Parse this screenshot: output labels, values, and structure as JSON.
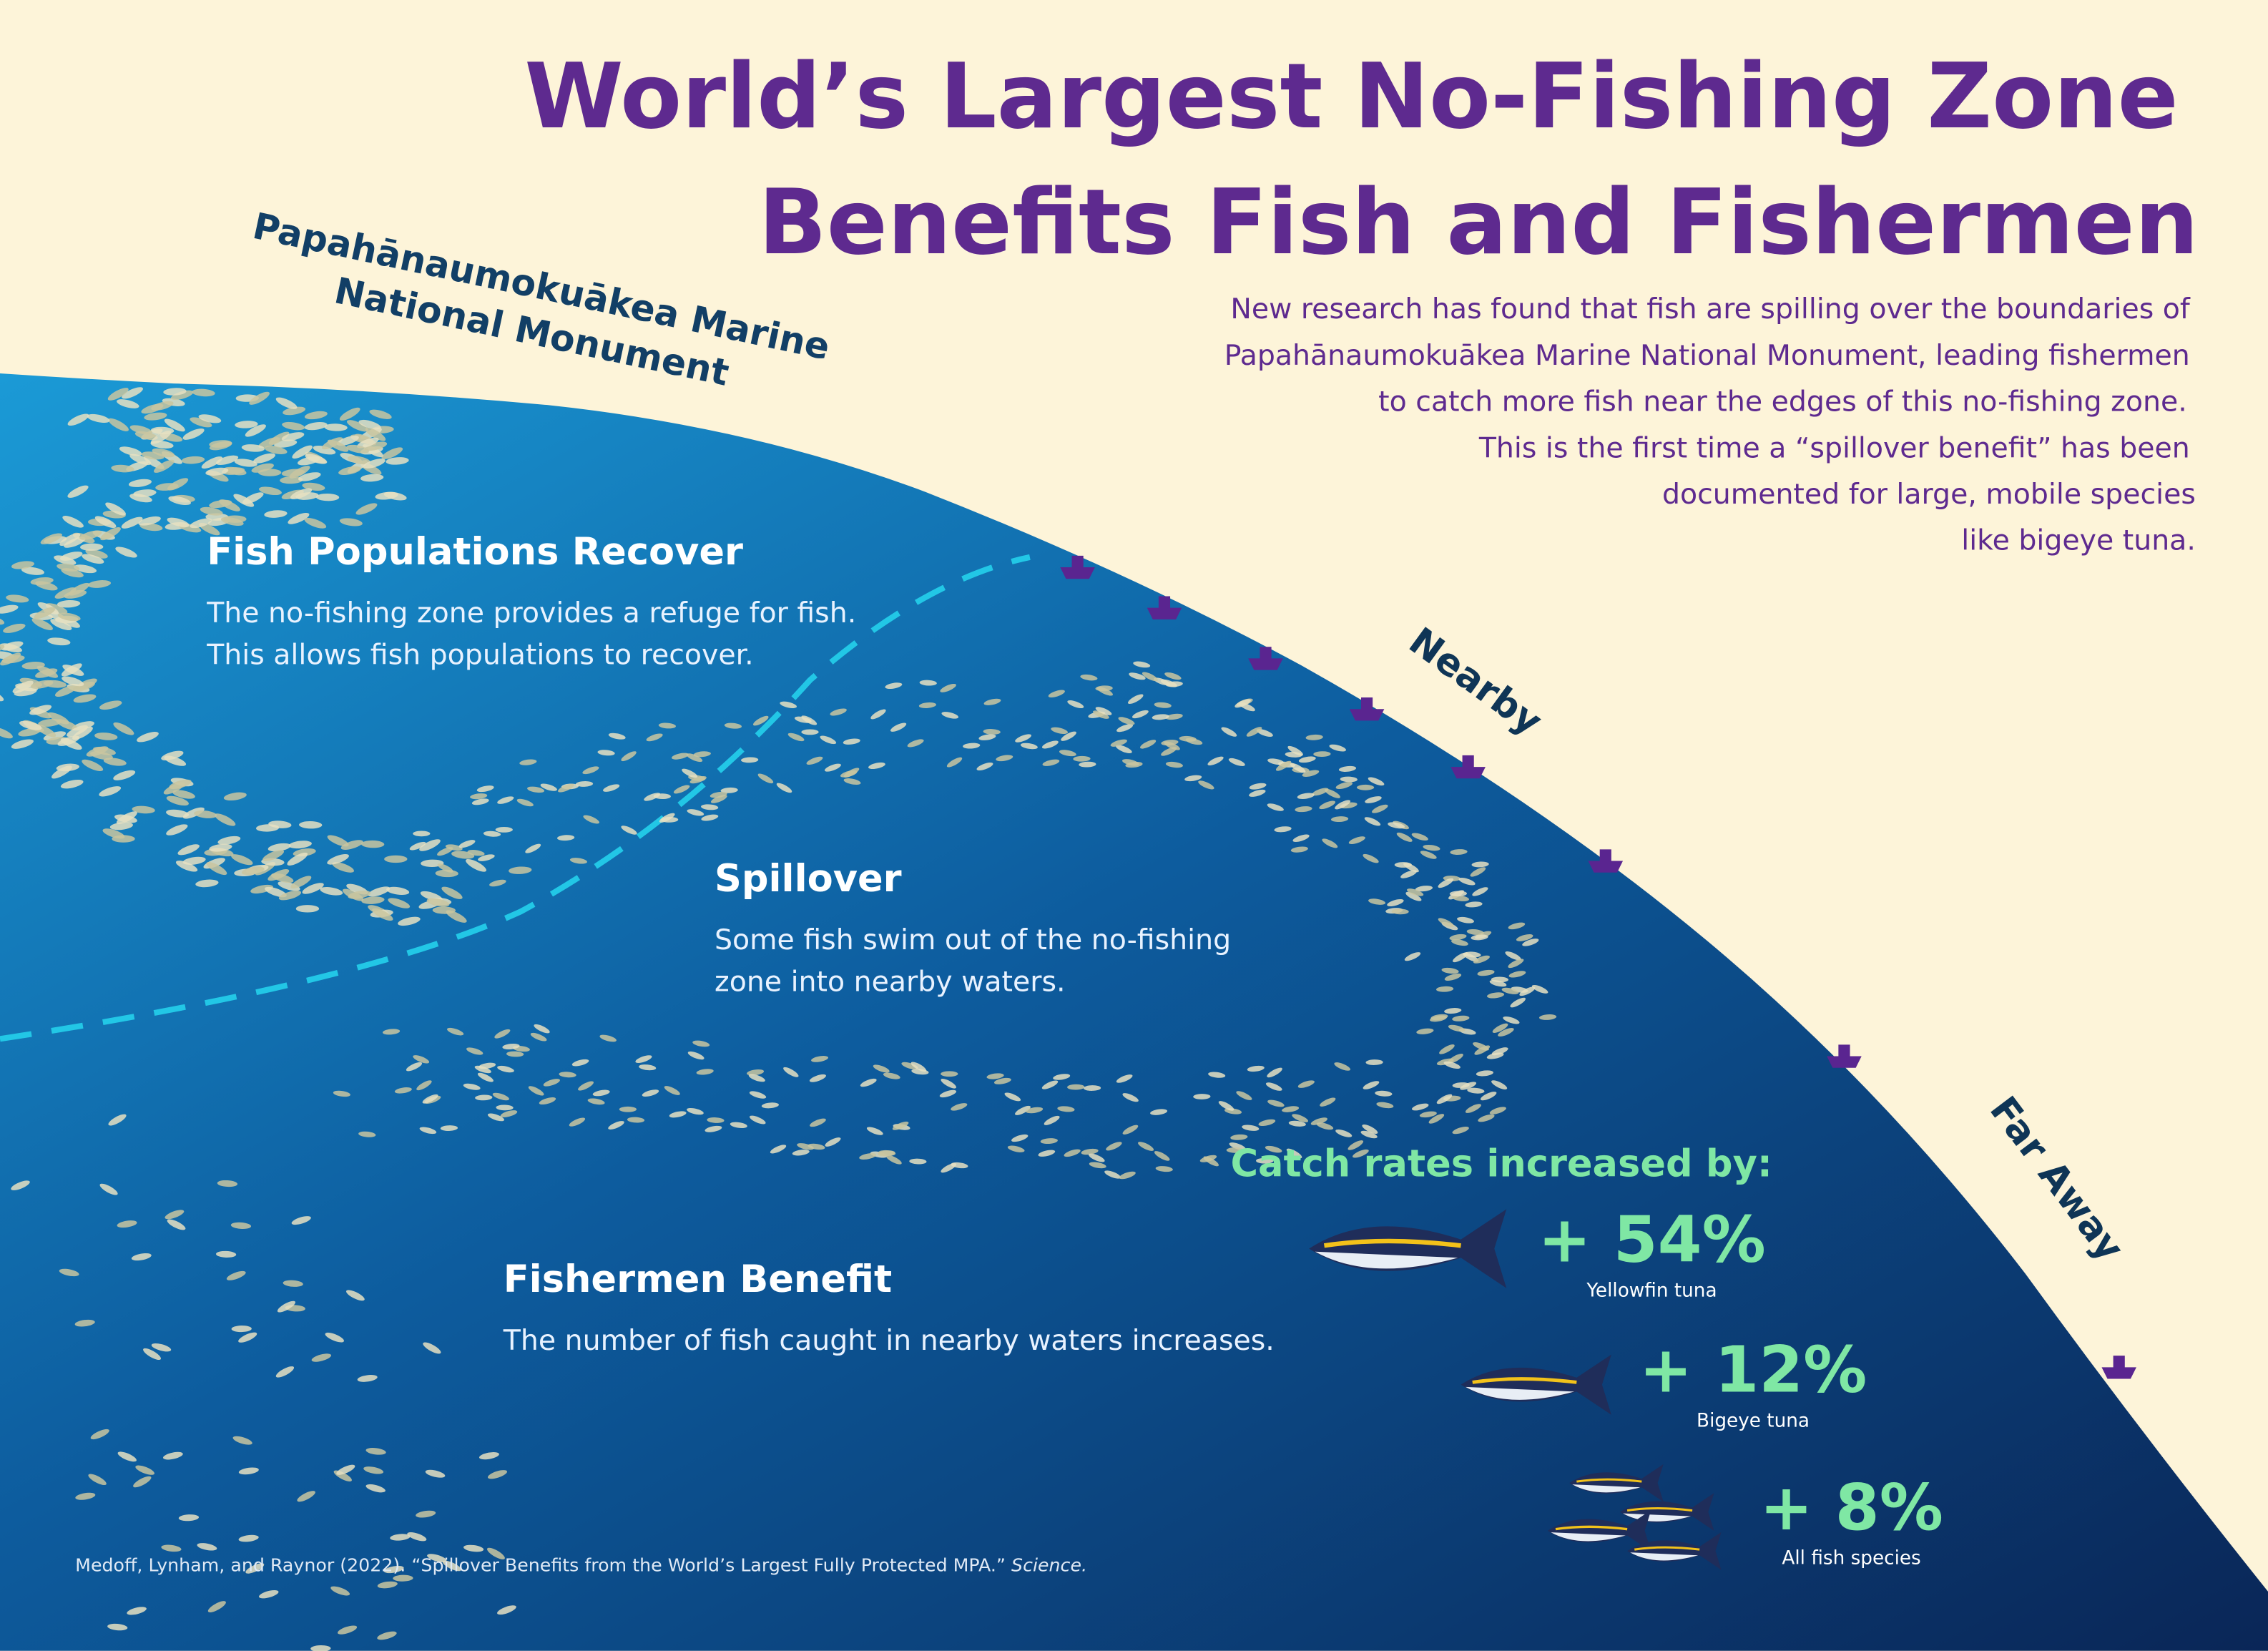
{
  "header": {
    "title": [
      "World’s Largest No-Fishing Zone",
      "Benefits Fish and Fishermen"
    ],
    "intro": [
      "New research has found that fish are spilling over the boundaries of",
      "Papahānaumokuākea Marine National Monument, leading fishermen",
      "to catch more fish near the edges of this no-fishing zone.",
      "This is the first time a “spillover benefit” has been",
      "documented for large, mobile species",
      "like bigeye tuna."
    ]
  },
  "monument": [
    "Papahānaumokuākea Marine",
    "National Monument"
  ],
  "sections": [
    {
      "heading": "Fish Populations Recover",
      "text": [
        "The no-fishing zone provides a refuge for fish.",
        "This allows fish populations to recover."
      ]
    },
    {
      "heading": "Spillover",
      "text": [
        "Some fish swim out of the no-fishing",
        "zone into nearby waters."
      ]
    },
    {
      "heading": "Fishermen Benefit",
      "text": [
        "The number of fish caught in nearby waters increases."
      ]
    }
  ],
  "zones": [
    "Nearby",
    "Far Away"
  ],
  "catch": {
    "title": "Catch rates increased by:",
    "items": [
      {
        "value": "+ 54%",
        "species": "Yellowfin tuna"
      },
      {
        "value": "+ 12%",
        "species": "Bigeye tuna"
      },
      {
        "value": "+ 8%",
        "species": "All fish species"
      }
    ]
  },
  "citation": {
    "text": "Medoff, Lynham, and Raynor (2022). “Spillover Benefits from the World’s Largest Fully Protected MPA.”",
    "journal": "Science."
  }
}
